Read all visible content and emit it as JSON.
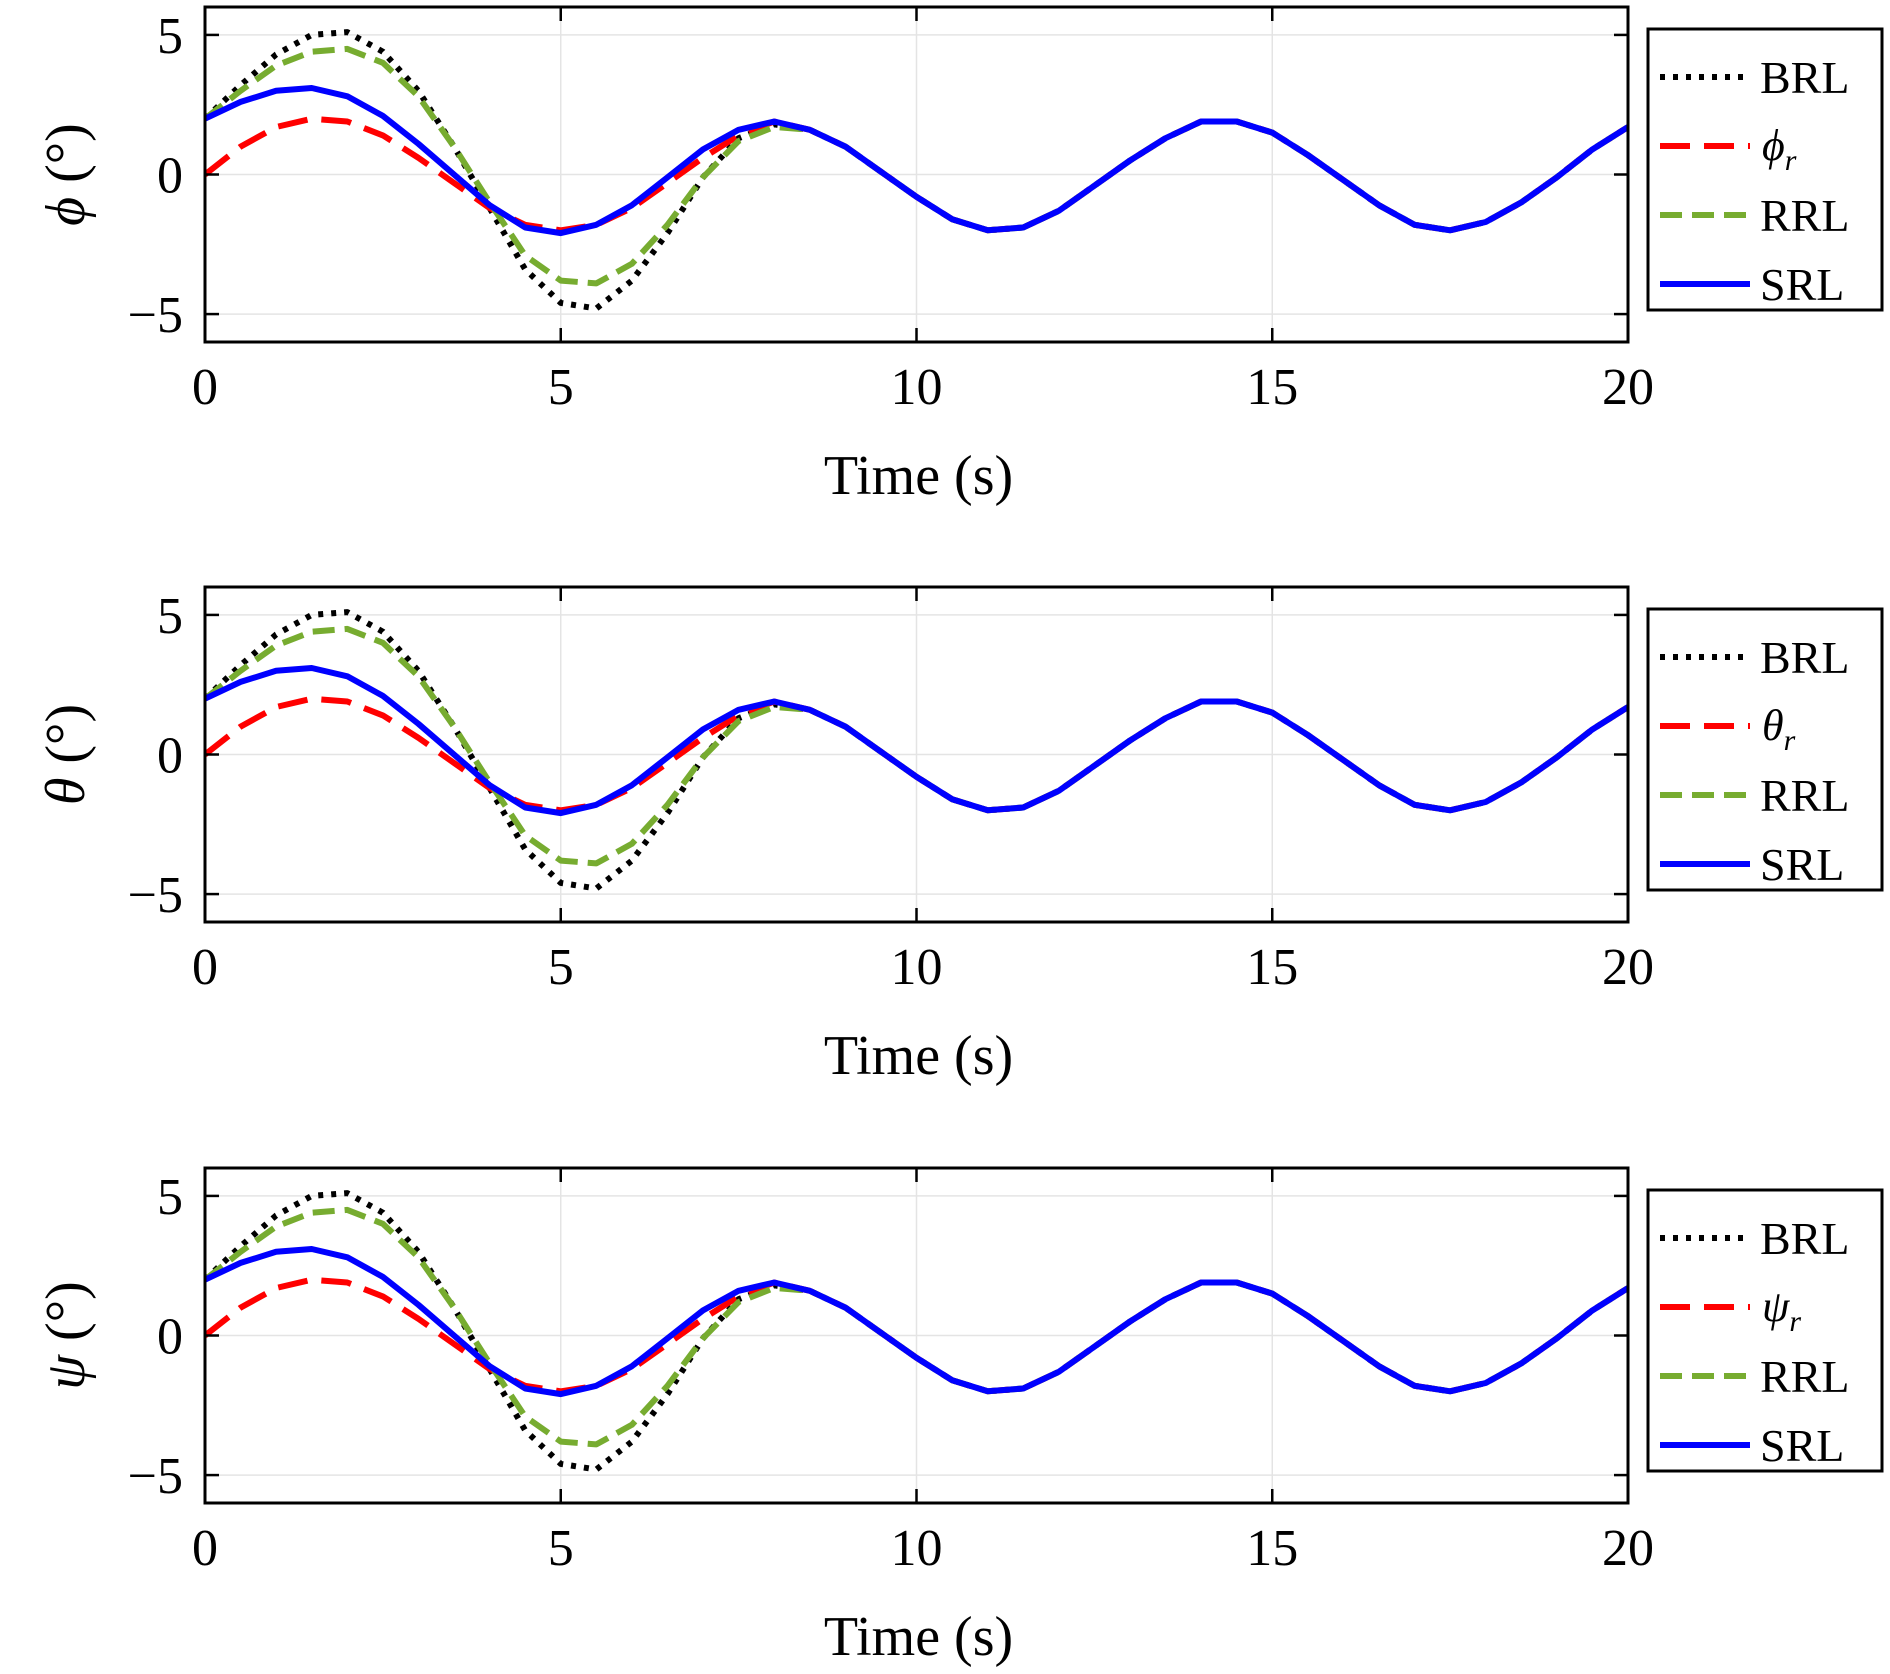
{
  "chart_data": [
    {
      "type": "line",
      "ylabel": "ϕ (°)",
      "ylabel_symbol": "ϕ",
      "ylabel_unit": "(°)",
      "xlabel": "Time (s)",
      "xlim": [
        0,
        20
      ],
      "ylim": [
        -6,
        6
      ],
      "x_ticks": [
        "0",
        "5",
        "10",
        "15",
        "20"
      ],
      "y_ticks": [
        "−5",
        "0",
        "5"
      ],
      "grid": true,
      "legend_position": "right",
      "x": [
        0,
        0.5,
        1,
        1.5,
        2,
        2.5,
        3,
        3.5,
        4,
        4.5,
        5,
        5.5,
        6,
        6.5,
        7,
        7.5,
        8,
        8.5,
        9,
        9.5,
        10,
        10.5,
        11,
        11.5,
        12,
        12.5,
        13,
        13.5,
        14,
        14.5,
        15,
        15.5,
        16,
        16.5,
        17,
        17.5,
        18,
        18.5,
        19,
        19.5,
        20
      ],
      "series": [
        {
          "name": "BRL",
          "style": "dotted",
          "color": "#000000",
          "values": [
            2.0,
            3.2,
            4.3,
            5.0,
            5.1,
            4.4,
            3.0,
            1.0,
            -1.2,
            -3.4,
            -4.6,
            -4.8,
            -3.8,
            -2.1,
            -0.1,
            1.3,
            1.8,
            1.6,
            1.0,
            0.1,
            -0.8,
            -1.6,
            -2.0,
            -1.9,
            -1.3,
            -0.4,
            0.5,
            1.3,
            1.9,
            1.9,
            1.5,
            0.7,
            -0.2,
            -1.1,
            -1.8,
            -2.0,
            -1.7,
            -1.0,
            -0.1,
            0.9,
            1.7
          ]
        },
        {
          "name": "ϕ",
          "label_symbol": "ϕ",
          "label_sub": "r",
          "style": "dashed",
          "color": "#ff0000",
          "values": [
            0.0,
            1.0,
            1.7,
            2.0,
            1.9,
            1.4,
            0.6,
            -0.3,
            -1.2,
            -1.8,
            -2.0,
            -1.8,
            -1.2,
            -0.3,
            0.6,
            1.4,
            1.9,
            1.6,
            1.0,
            0.1,
            -0.8,
            -1.6,
            -2.0,
            -1.9,
            -1.3,
            -0.4,
            0.5,
            1.3,
            1.9,
            1.9,
            1.5,
            0.7,
            -0.2,
            -1.1,
            -1.8,
            -2.0,
            -1.7,
            -1.0,
            -0.1,
            0.9,
            1.7
          ]
        },
        {
          "name": "RRL",
          "style": "dashed",
          "color": "#77ac30",
          "values": [
            2.0,
            3.0,
            3.9,
            4.4,
            4.5,
            4.0,
            2.8,
            1.0,
            -1.0,
            -2.9,
            -3.8,
            -3.9,
            -3.2,
            -1.8,
            -0.1,
            1.2,
            1.7,
            1.6,
            1.0,
            0.1,
            -0.8,
            -1.6,
            -2.0,
            -1.9,
            -1.3,
            -0.4,
            0.5,
            1.3,
            1.9,
            1.9,
            1.5,
            0.7,
            -0.2,
            -1.1,
            -1.8,
            -2.0,
            -1.7,
            -1.0,
            -0.1,
            0.9,
            1.7
          ]
        },
        {
          "name": "SRL",
          "style": "solid",
          "color": "#0000ff",
          "values": [
            2.0,
            2.6,
            3.0,
            3.1,
            2.8,
            2.1,
            1.1,
            0.0,
            -1.1,
            -1.9,
            -2.1,
            -1.8,
            -1.1,
            -0.1,
            0.9,
            1.6,
            1.9,
            1.6,
            1.0,
            0.1,
            -0.8,
            -1.6,
            -2.0,
            -1.9,
            -1.3,
            -0.4,
            0.5,
            1.3,
            1.9,
            1.9,
            1.5,
            0.7,
            -0.2,
            -1.1,
            -1.8,
            -2.0,
            -1.7,
            -1.0,
            -0.1,
            0.9,
            1.7
          ]
        }
      ]
    },
    {
      "type": "line",
      "ylabel": "θ (°)",
      "ylabel_symbol": "θ",
      "ylabel_unit": "(°)",
      "xlabel": "Time (s)",
      "xlim": [
        0,
        20
      ],
      "ylim": [
        -6,
        6
      ],
      "x_ticks": [
        "0",
        "5",
        "10",
        "15",
        "20"
      ],
      "y_ticks": [
        "−5",
        "0",
        "5"
      ],
      "grid": true,
      "legend_position": "right",
      "x": [
        0,
        0.5,
        1,
        1.5,
        2,
        2.5,
        3,
        3.5,
        4,
        4.5,
        5,
        5.5,
        6,
        6.5,
        7,
        7.5,
        8,
        8.5,
        9,
        9.5,
        10,
        10.5,
        11,
        11.5,
        12,
        12.5,
        13,
        13.5,
        14,
        14.5,
        15,
        15.5,
        16,
        16.5,
        17,
        17.5,
        18,
        18.5,
        19,
        19.5,
        20
      ],
      "series": [
        {
          "name": "BRL",
          "style": "dotted",
          "color": "#000000",
          "values": [
            2.0,
            3.2,
            4.3,
            5.0,
            5.1,
            4.4,
            3.0,
            1.0,
            -1.2,
            -3.4,
            -4.6,
            -4.8,
            -3.8,
            -2.1,
            -0.1,
            1.3,
            1.8,
            1.6,
            1.0,
            0.1,
            -0.8,
            -1.6,
            -2.0,
            -1.9,
            -1.3,
            -0.4,
            0.5,
            1.3,
            1.9,
            1.9,
            1.5,
            0.7,
            -0.2,
            -1.1,
            -1.8,
            -2.0,
            -1.7,
            -1.0,
            -0.1,
            0.9,
            1.7
          ]
        },
        {
          "name": "θ",
          "label_symbol": "θ",
          "label_sub": "r",
          "style": "dashed",
          "color": "#ff0000",
          "values": [
            0.0,
            1.0,
            1.7,
            2.0,
            1.9,
            1.4,
            0.6,
            -0.3,
            -1.2,
            -1.8,
            -2.0,
            -1.8,
            -1.2,
            -0.3,
            0.6,
            1.4,
            1.9,
            1.6,
            1.0,
            0.1,
            -0.8,
            -1.6,
            -2.0,
            -1.9,
            -1.3,
            -0.4,
            0.5,
            1.3,
            1.9,
            1.9,
            1.5,
            0.7,
            -0.2,
            -1.1,
            -1.8,
            -2.0,
            -1.7,
            -1.0,
            -0.1,
            0.9,
            1.7
          ]
        },
        {
          "name": "RRL",
          "style": "dashed",
          "color": "#77ac30",
          "values": [
            2.0,
            3.0,
            3.9,
            4.4,
            4.5,
            4.0,
            2.8,
            1.0,
            -1.0,
            -2.9,
            -3.8,
            -3.9,
            -3.2,
            -1.8,
            -0.1,
            1.2,
            1.7,
            1.6,
            1.0,
            0.1,
            -0.8,
            -1.6,
            -2.0,
            -1.9,
            -1.3,
            -0.4,
            0.5,
            1.3,
            1.9,
            1.9,
            1.5,
            0.7,
            -0.2,
            -1.1,
            -1.8,
            -2.0,
            -1.7,
            -1.0,
            -0.1,
            0.9,
            1.7
          ]
        },
        {
          "name": "SRL",
          "style": "solid",
          "color": "#0000ff",
          "values": [
            2.0,
            2.6,
            3.0,
            3.1,
            2.8,
            2.1,
            1.1,
            0.0,
            -1.1,
            -1.9,
            -2.1,
            -1.8,
            -1.1,
            -0.1,
            0.9,
            1.6,
            1.9,
            1.6,
            1.0,
            0.1,
            -0.8,
            -1.6,
            -2.0,
            -1.9,
            -1.3,
            -0.4,
            0.5,
            1.3,
            1.9,
            1.9,
            1.5,
            0.7,
            -0.2,
            -1.1,
            -1.8,
            -2.0,
            -1.7,
            -1.0,
            -0.1,
            0.9,
            1.7
          ]
        }
      ]
    },
    {
      "type": "line",
      "ylabel": "ψ (°)",
      "ylabel_symbol": "ψ",
      "ylabel_unit": "(°)",
      "xlabel": "Time (s)",
      "xlim": [
        0,
        20
      ],
      "ylim": [
        -6,
        6
      ],
      "x_ticks": [
        "0",
        "5",
        "10",
        "15",
        "20"
      ],
      "y_ticks": [
        "−5",
        "0",
        "5"
      ],
      "grid": true,
      "legend_position": "right",
      "x": [
        0,
        0.5,
        1,
        1.5,
        2,
        2.5,
        3,
        3.5,
        4,
        4.5,
        5,
        5.5,
        6,
        6.5,
        7,
        7.5,
        8,
        8.5,
        9,
        9.5,
        10,
        10.5,
        11,
        11.5,
        12,
        12.5,
        13,
        13.5,
        14,
        14.5,
        15,
        15.5,
        16,
        16.5,
        17,
        17.5,
        18,
        18.5,
        19,
        19.5,
        20
      ],
      "series": [
        {
          "name": "BRL",
          "style": "dotted",
          "color": "#000000",
          "values": [
            2.0,
            3.2,
            4.3,
            5.0,
            5.1,
            4.4,
            3.0,
            1.0,
            -1.2,
            -3.4,
            -4.6,
            -4.8,
            -3.8,
            -2.1,
            -0.1,
            1.3,
            1.8,
            1.6,
            1.0,
            0.1,
            -0.8,
            -1.6,
            -2.0,
            -1.9,
            -1.3,
            -0.4,
            0.5,
            1.3,
            1.9,
            1.9,
            1.5,
            0.7,
            -0.2,
            -1.1,
            -1.8,
            -2.0,
            -1.7,
            -1.0,
            -0.1,
            0.9,
            1.7
          ]
        },
        {
          "name": "ψ",
          "label_symbol": "ψ",
          "label_sub": "r",
          "style": "dashed",
          "color": "#ff0000",
          "values": [
            0.0,
            1.0,
            1.7,
            2.0,
            1.9,
            1.4,
            0.6,
            -0.3,
            -1.2,
            -1.8,
            -2.0,
            -1.8,
            -1.2,
            -0.3,
            0.6,
            1.4,
            1.9,
            1.6,
            1.0,
            0.1,
            -0.8,
            -1.6,
            -2.0,
            -1.9,
            -1.3,
            -0.4,
            0.5,
            1.3,
            1.9,
            1.9,
            1.5,
            0.7,
            -0.2,
            -1.1,
            -1.8,
            -2.0,
            -1.7,
            -1.0,
            -0.1,
            0.9,
            1.7
          ]
        },
        {
          "name": "RRL",
          "style": "dashed",
          "color": "#77ac30",
          "values": [
            2.0,
            3.0,
            3.9,
            4.4,
            4.5,
            4.0,
            2.8,
            1.0,
            -1.0,
            -2.9,
            -3.8,
            -3.9,
            -3.2,
            -1.8,
            -0.1,
            1.2,
            1.7,
            1.6,
            1.0,
            0.1,
            -0.8,
            -1.6,
            -2.0,
            -1.9,
            -1.3,
            -0.4,
            0.5,
            1.3,
            1.9,
            1.9,
            1.5,
            0.7,
            -0.2,
            -1.1,
            -1.8,
            -2.0,
            -1.7,
            -1.0,
            -0.1,
            0.9,
            1.7
          ]
        },
        {
          "name": "SRL",
          "style": "solid",
          "color": "#0000ff",
          "values": [
            2.0,
            2.6,
            3.0,
            3.1,
            2.8,
            2.1,
            1.1,
            0.0,
            -1.1,
            -1.9,
            -2.1,
            -1.8,
            -1.1,
            -0.1,
            0.9,
            1.6,
            1.9,
            1.6,
            1.0,
            0.1,
            -0.8,
            -1.6,
            -2.0,
            -1.9,
            -1.3,
            -0.4,
            0.5,
            1.3,
            1.9,
            1.9,
            1.5,
            0.7,
            -0.2,
            -1.1,
            -1.8,
            -2.0,
            -1.7,
            -1.0,
            -0.1,
            0.9,
            1.7
          ]
        }
      ]
    }
  ]
}
